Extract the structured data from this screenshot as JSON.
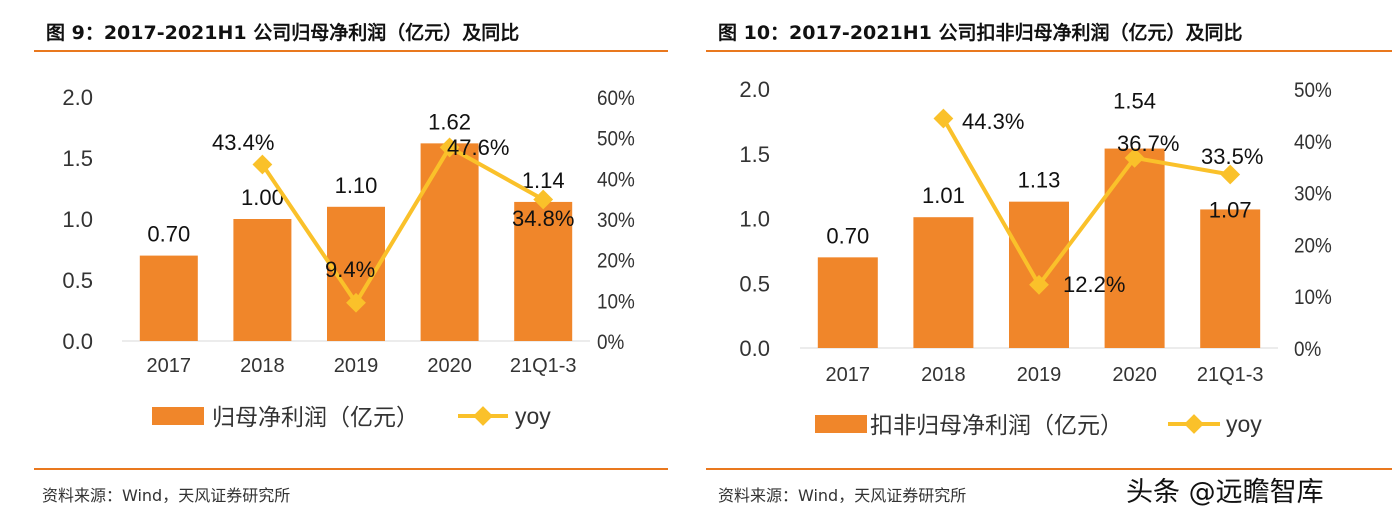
{
  "watermark": "头条 @远瞻智库",
  "colors": {
    "bar": "#F0862A",
    "line": "#FAC12A",
    "rule": "#E9781E"
  },
  "chart_data": [
    {
      "type": "bar",
      "title": "图 9：2017-2021H1 公司归母净利润（亿元）及同比",
      "source": "资料来源：Wind，天风证券研究所",
      "categories": [
        "2017",
        "2018",
        "2019",
        "2020",
        "21Q1-3"
      ],
      "series": [
        {
          "name": "归母净利润（亿元）",
          "type": "bar",
          "axis": "left",
          "values": [
            0.7,
            1.0,
            1.1,
            1.62,
            1.14
          ],
          "labels": [
            "0.70",
            "1.00",
            "1.10",
            "1.62",
            "1.14"
          ]
        },
        {
          "name": "yoy",
          "type": "line",
          "axis": "right",
          "values": [
            null,
            43.4,
            9.4,
            47.6,
            34.8
          ],
          "labels": [
            null,
            "43.4%",
            "9.4%",
            "47.6%",
            "34.8%"
          ]
        }
      ],
      "ylim_left": [
        0,
        2.0
      ],
      "yticks_left": [
        "0.0",
        "0.5",
        "1.0",
        "1.5",
        "2.0"
      ],
      "ylim_right": [
        0,
        60
      ],
      "yticks_right": [
        "0%",
        "10%",
        "20%",
        "30%",
        "40%",
        "50%",
        "60%"
      ],
      "legend": [
        "归母净利润（亿元）",
        "yoy"
      ],
      "legend_position": "bottom",
      "grid": false
    },
    {
      "type": "bar",
      "title": "图 10：2017-2021H1 公司扣非归母净利润（亿元）及同比",
      "source": "资料来源：Wind，天风证券研究所",
      "categories": [
        "2017",
        "2018",
        "2019",
        "2020",
        "21Q1-3"
      ],
      "series": [
        {
          "name": "扣非归母净利润（亿元）",
          "type": "bar",
          "axis": "left",
          "values": [
            0.7,
            1.01,
            1.13,
            1.54,
            1.07
          ],
          "labels": [
            "0.70",
            "1.01",
            "1.13",
            "1.54",
            "1.07"
          ]
        },
        {
          "name": "yoy",
          "type": "line",
          "axis": "right",
          "values": [
            null,
            44.3,
            12.2,
            36.7,
            33.5
          ],
          "labels": [
            null,
            "44.3%",
            "12.2%",
            "36.7%",
            "33.5%"
          ]
        }
      ],
      "ylim_left": [
        0,
        2.0
      ],
      "yticks_left": [
        "0.0",
        "0.5",
        "1.0",
        "1.5",
        "2.0"
      ],
      "ylim_right": [
        0,
        50
      ],
      "yticks_right": [
        "0%",
        "10%",
        "20%",
        "30%",
        "40%",
        "50%"
      ],
      "legend": [
        "扣非归母净利润（亿元）",
        "yoy"
      ],
      "legend_position": "bottom",
      "grid": false
    }
  ]
}
